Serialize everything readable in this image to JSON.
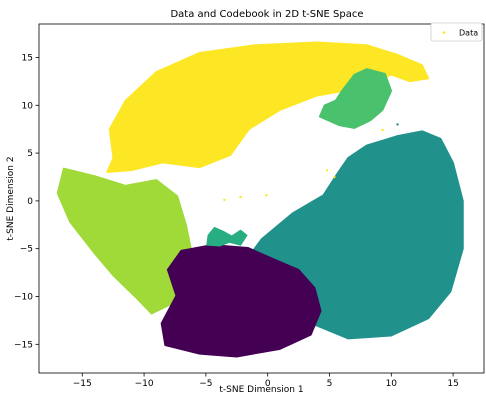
{
  "chart_data": {
    "type": "scatter",
    "title": "Data and Codebook in 2D t-SNE Space",
    "xlabel": "t-SNE Dimension 1",
    "ylabel": "t-SNE Dimension 2",
    "xlim": [
      -18.5,
      17.5
    ],
    "ylim": [
      -18,
      18.5
    ],
    "xticks": [
      -15,
      -10,
      -5,
      0,
      5,
      10,
      15
    ],
    "yticks": [
      -15,
      -10,
      -5,
      0,
      5,
      10,
      15
    ],
    "grid": false,
    "legend": {
      "position": "top-right",
      "entries": [
        "Data"
      ]
    },
    "series": [
      {
        "name": "Data",
        "clusters": [
          {
            "color": "#fde725",
            "outline": [
              [
                -12.5,
                4.5
              ],
              [
                -12.8,
                7.5
              ],
              [
                -11.5,
                10.5
              ],
              [
                -9,
                13.5
              ],
              [
                -5.5,
                15.5
              ],
              [
                -1,
                16.3
              ],
              [
                4,
                16.6
              ],
              [
                8,
                16.3
              ],
              [
                10.5,
                15.3
              ],
              [
                12.5,
                14.2
              ],
              [
                13,
                12.8
              ],
              [
                11.5,
                12.5
              ],
              [
                10,
                13.2
              ],
              [
                7.5,
                11.8
              ],
              [
                4,
                11
              ],
              [
                1,
                9.5
              ],
              [
                -1.5,
                7.5
              ],
              [
                -3,
                4.8
              ],
              [
                -5.5,
                3.5
              ],
              [
                -8.5,
                4
              ],
              [
                -11,
                3.2
              ],
              [
                -13,
                3
              ]
            ],
            "points": [
              [
                -9,
                12.5
              ],
              [
                -5,
                14.5
              ],
              [
                0,
                15.2
              ],
              [
                4,
                15.5
              ],
              [
                8,
                15.2
              ],
              [
                11,
                13.8
              ],
              [
                -11,
                8
              ],
              [
                -8,
                9
              ],
              [
                -3,
                10
              ],
              [
                1,
                11
              ],
              [
                -6,
                6
              ],
              [
                -10,
                5
              ]
            ]
          },
          {
            "color": "#4ac16d",
            "outline": [
              [
                6,
                11.5
              ],
              [
                7,
                13.2
              ],
              [
                8,
                13.8
              ],
              [
                9.5,
                13.3
              ],
              [
                10,
                11.5
              ],
              [
                9.3,
                9.5
              ],
              [
                8.3,
                8.4
              ],
              [
                7,
                7.6
              ],
              [
                5.8,
                7.9
              ],
              [
                4.2,
                8.8
              ],
              [
                4.6,
                10
              ],
              [
                5.5,
                10.5
              ]
            ],
            "points": [
              [
                7.2,
                12.5
              ],
              [
                8.5,
                12.3
              ],
              [
                9,
                10.5
              ],
              [
                7,
                9.4
              ],
              [
                5.6,
                9
              ]
            ]
          },
          {
            "color": "#21918c",
            "outline": [
              [
                -0.5,
                -4
              ],
              [
                2,
                -1.3
              ],
              [
                4.5,
                0.6
              ],
              [
                5.6,
                2.8
              ],
              [
                6.5,
                4.5
              ],
              [
                8,
                5.8
              ],
              [
                10.5,
                6.8
              ],
              [
                12.5,
                7.3
              ],
              [
                14,
                6.5
              ],
              [
                15,
                4
              ],
              [
                15.8,
                0
              ],
              [
                15.8,
                -5
              ],
              [
                14.8,
                -9.5
              ],
              [
                13,
                -12.3
              ],
              [
                10,
                -14.1
              ],
              [
                6.5,
                -14.4
              ],
              [
                3.5,
                -12.8
              ],
              [
                1.5,
                -9.5
              ],
              [
                -0.6,
                -7.1
              ],
              [
                -1.3,
                -5.4
              ]
            ],
            "points": [
              [
                8,
                2
              ],
              [
                11,
                3.5
              ],
              [
                13.5,
                2
              ],
              [
                14.5,
                -3
              ],
              [
                13,
                -8
              ],
              [
                10,
                -11
              ],
              [
                6.5,
                -12
              ],
              [
                4,
                -10
              ],
              [
                2,
                -6
              ],
              [
                5,
                -4
              ],
              [
                9,
                -6
              ],
              [
                11,
                -2
              ],
              [
                10.5,
                8
              ],
              [
                6,
                -3
              ],
              [
                3.5,
                -1
              ]
            ]
          },
          {
            "color": "#a0da39",
            "outline": [
              [
                -16.5,
                3.4
              ],
              [
                -14,
                2.6
              ],
              [
                -11.5,
                1.6
              ],
              [
                -9,
                2.2
              ],
              [
                -7.3,
                0.5
              ],
              [
                -6.6,
                -2.5
              ],
              [
                -6.2,
                -5
              ],
              [
                -6.7,
                -8.4
              ],
              [
                -7.8,
                -10.8
              ],
              [
                -9.4,
                -11.8
              ],
              [
                -10.6,
                -10.2
              ],
              [
                -12.5,
                -7.8
              ],
              [
                -14,
                -5.5
              ],
              [
                -16,
                -2.2
              ],
              [
                -17,
                0.8
              ]
            ],
            "points": [
              [
                -15,
                1.5
              ],
              [
                -12.5,
                0
              ],
              [
                -10,
                -1
              ],
              [
                -8,
                -3
              ],
              [
                -9.5,
                -6
              ],
              [
                -11,
                -8
              ],
              [
                -13,
                -4
              ],
              [
                -7.5,
                -9
              ]
            ]
          },
          {
            "color": "#440154",
            "outline": [
              [
                -7,
                -5.2
              ],
              [
                -4.5,
                -4.6
              ],
              [
                -1.6,
                -4.9
              ],
              [
                0.5,
                -6.1
              ],
              [
                2.5,
                -7.2
              ],
              [
                3.8,
                -9.1
              ],
              [
                4.3,
                -11.5
              ],
              [
                3.5,
                -14
              ],
              [
                1,
                -15.5
              ],
              [
                -2.5,
                -16.3
              ],
              [
                -5.5,
                -16
              ],
              [
                -8.3,
                -15.1
              ],
              [
                -8.6,
                -12.8
              ],
              [
                -7.4,
                -9.9
              ],
              [
                -8.1,
                -7.2
              ]
            ],
            "points": [
              [
                -5.5,
                -6.5
              ],
              [
                -2.5,
                -6.2
              ],
              [
                1,
                -8.5
              ],
              [
                2.5,
                -11
              ],
              [
                0,
                -13.5
              ],
              [
                -4,
                -14.5
              ],
              [
                -7,
                -12
              ],
              [
                -4.5,
                -10
              ]
            ]
          },
          {
            "color": "#27ad81",
            "outline": [
              [
                -4.8,
                -3.6
              ],
              [
                -4.3,
                -2.8
              ],
              [
                -3.6,
                -3.2
              ],
              [
                -2.9,
                -3.7
              ],
              [
                -2.2,
                -3.1
              ],
              [
                -1.7,
                -3.6
              ],
              [
                -2.2,
                -4.6
              ],
              [
                -3.1,
                -4.3
              ],
              [
                -3.9,
                -4.7
              ],
              [
                -4.9,
                -4.6
              ]
            ],
            "points": [
              [
                -4.2,
                -3.6
              ],
              [
                -2.4,
                -3.9
              ]
            ]
          }
        ],
        "stray_points": [
          [
            -2.2,
            0.4
          ],
          [
            -0.1,
            0.6
          ],
          [
            -3.5,
            0.1
          ],
          [
            4.8,
            3.2
          ],
          [
            5.4,
            2.5
          ],
          [
            9.3,
            7.4
          ]
        ]
      }
    ]
  }
}
